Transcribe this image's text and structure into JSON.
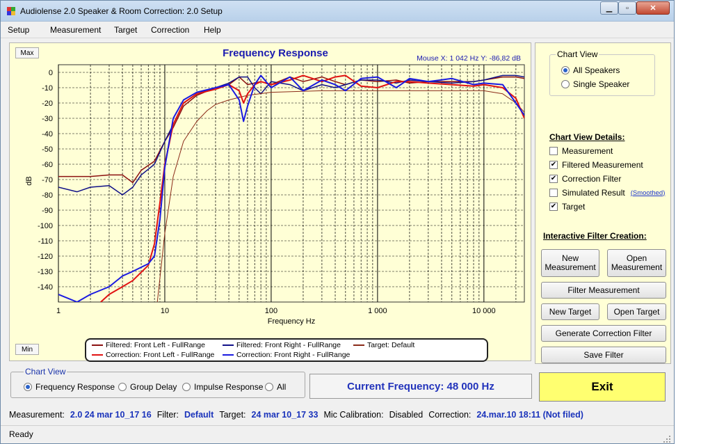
{
  "window": {
    "title": "Audiolense 2.0 Speaker & Room Correction: 2.0 Setup"
  },
  "menu": [
    "Setup",
    "Measurement",
    "Target",
    "Correction",
    "Help"
  ],
  "chart_panel": {
    "max_label": "Max",
    "min_label": "Min",
    "mouse_readout": "Mouse X: 1 042 Hz   Y:  -86,82 dB"
  },
  "chart_data": {
    "type": "line",
    "title": "Frequency Response",
    "xlabel": "Frequency Hz",
    "ylabel": "dB",
    "x_scale": "log",
    "xlim": [
      1,
      24000
    ],
    "ylim": [
      -150,
      5
    ],
    "x_ticks": [
      {
        "v": 1,
        "label": "1"
      },
      {
        "v": 10,
        "label": "10"
      },
      {
        "v": 100,
        "label": "100"
      },
      {
        "v": 1000,
        "label": "1 000"
      },
      {
        "v": 10000,
        "label": "10 000"
      }
    ],
    "y_ticks": [
      0,
      -10,
      -20,
      -30,
      -40,
      -50,
      -60,
      -70,
      -80,
      -90,
      -100,
      -110,
      -120,
      -130,
      -140
    ],
    "grid": true,
    "legend_position": "bottom",
    "series": [
      {
        "name": "Filtered: Front Left - FullRange",
        "color": "#8b1010",
        "width": 1.5,
        "points": [
          [
            1,
            -68
          ],
          [
            2,
            -68
          ],
          [
            3,
            -67
          ],
          [
            4,
            -67
          ],
          [
            5,
            -72
          ],
          [
            6,
            -64
          ],
          [
            8,
            -58
          ],
          [
            10,
            -45
          ],
          [
            12,
            -36
          ],
          [
            15,
            -22
          ],
          [
            20,
            -15
          ],
          [
            30,
            -10
          ],
          [
            40,
            -8
          ],
          [
            50,
            -3
          ],
          [
            60,
            -8
          ],
          [
            80,
            -6
          ],
          [
            100,
            -8
          ],
          [
            150,
            -3
          ],
          [
            200,
            -6
          ],
          [
            300,
            -3
          ],
          [
            400,
            -6
          ],
          [
            500,
            -8
          ],
          [
            700,
            -5
          ],
          [
            1000,
            -6
          ],
          [
            1500,
            -5
          ],
          [
            2000,
            -7
          ],
          [
            3000,
            -6
          ],
          [
            5000,
            -6
          ],
          [
            8000,
            -6
          ],
          [
            10000,
            -5
          ],
          [
            15000,
            -3
          ],
          [
            20000,
            -3
          ],
          [
            24000,
            -4
          ]
        ]
      },
      {
        "name": "Filtered: Front Right - FullRange",
        "color": "#101088",
        "width": 1.5,
        "points": [
          [
            1,
            -75
          ],
          [
            1.5,
            -78
          ],
          [
            2,
            -75
          ],
          [
            3,
            -74
          ],
          [
            4,
            -80
          ],
          [
            5,
            -75
          ],
          [
            6,
            -67
          ],
          [
            8,
            -60
          ],
          [
            10,
            -45
          ],
          [
            12,
            -34
          ],
          [
            15,
            -20
          ],
          [
            20,
            -14
          ],
          [
            30,
            -10
          ],
          [
            40,
            -7
          ],
          [
            50,
            -3
          ],
          [
            60,
            -3
          ],
          [
            70,
            -10
          ],
          [
            80,
            -14
          ],
          [
            100,
            -6
          ],
          [
            150,
            -8
          ],
          [
            200,
            -12
          ],
          [
            300,
            -8
          ],
          [
            400,
            -10
          ],
          [
            500,
            -8
          ],
          [
            700,
            -5
          ],
          [
            1000,
            -5
          ],
          [
            1500,
            -7
          ],
          [
            2000,
            -5
          ],
          [
            3000,
            -6
          ],
          [
            5000,
            -7
          ],
          [
            8000,
            -6
          ],
          [
            10000,
            -5
          ],
          [
            15000,
            -2
          ],
          [
            20000,
            -2
          ],
          [
            24000,
            -3
          ]
        ]
      },
      {
        "name": "Target: Default",
        "color": "#8a2a18",
        "width": 1,
        "points": [
          [
            8.5,
            -150
          ],
          [
            10,
            -105
          ],
          [
            12,
            -68
          ],
          [
            15,
            -45
          ],
          [
            20,
            -32
          ],
          [
            25,
            -25
          ],
          [
            30,
            -21
          ],
          [
            40,
            -18
          ],
          [
            60,
            -15
          ],
          [
            100,
            -13
          ],
          [
            300,
            -12
          ],
          [
            1000,
            -12
          ],
          [
            5000,
            -12
          ],
          [
            10000,
            -12
          ],
          [
            15000,
            -14
          ],
          [
            20000,
            -20
          ],
          [
            24000,
            -26
          ]
        ]
      },
      {
        "name": "Correction: Front Left - FullRange",
        "color": "#e11212",
        "width": 2,
        "points": [
          [
            2.5,
            -150
          ],
          [
            3,
            -145
          ],
          [
            4,
            -140
          ],
          [
            5,
            -136
          ],
          [
            7,
            -126
          ],
          [
            8,
            -112
          ],
          [
            9,
            -85
          ],
          [
            10,
            -60
          ],
          [
            12,
            -34
          ],
          [
            15,
            -20
          ],
          [
            20,
            -14
          ],
          [
            30,
            -11
          ],
          [
            40,
            -8
          ],
          [
            50,
            -12
          ],
          [
            55,
            -20
          ],
          [
            60,
            -14
          ],
          [
            70,
            -8
          ],
          [
            80,
            -6
          ],
          [
            100,
            -8
          ],
          [
            150,
            -5
          ],
          [
            200,
            -2
          ],
          [
            300,
            -6
          ],
          [
            400,
            -3
          ],
          [
            500,
            -2
          ],
          [
            700,
            -9
          ],
          [
            1000,
            -10
          ],
          [
            1500,
            -6
          ],
          [
            2000,
            -6
          ],
          [
            3000,
            -7
          ],
          [
            5000,
            -8
          ],
          [
            8000,
            -9
          ],
          [
            10000,
            -8
          ],
          [
            15000,
            -10
          ],
          [
            20000,
            -17
          ],
          [
            24000,
            -30
          ]
        ]
      },
      {
        "name": "Correction: Front Right - FullRange",
        "color": "#1a1ae0",
        "width": 2,
        "points": [
          [
            1,
            -145
          ],
          [
            1.5,
            -150
          ],
          [
            2,
            -145
          ],
          [
            3,
            -140
          ],
          [
            4,
            -133
          ],
          [
            5,
            -130
          ],
          [
            7,
            -125
          ],
          [
            8,
            -120
          ],
          [
            9,
            -96
          ],
          [
            10,
            -62
          ],
          [
            12,
            -30
          ],
          [
            15,
            -18
          ],
          [
            20,
            -13
          ],
          [
            30,
            -10
          ],
          [
            40,
            -8
          ],
          [
            50,
            -18
          ],
          [
            55,
            -32
          ],
          [
            60,
            -22
          ],
          [
            70,
            -8
          ],
          [
            80,
            -2
          ],
          [
            100,
            -10
          ],
          [
            150,
            -3
          ],
          [
            200,
            -12
          ],
          [
            300,
            -5
          ],
          [
            400,
            -8
          ],
          [
            500,
            -12
          ],
          [
            700,
            -4
          ],
          [
            1000,
            -3
          ],
          [
            1500,
            -10
          ],
          [
            2000,
            -4
          ],
          [
            3000,
            -6
          ],
          [
            5000,
            -4
          ],
          [
            8000,
            -8
          ],
          [
            10000,
            -7
          ],
          [
            15000,
            -8
          ],
          [
            20000,
            -20
          ],
          [
            24000,
            -28
          ]
        ]
      }
    ]
  },
  "right_panel": {
    "chart_view_title": "Chart View",
    "chart_view_options": [
      {
        "label": "All Speakers",
        "selected": true
      },
      {
        "label": "Single Speaker",
        "selected": false
      }
    ],
    "details_title": "Chart View Details:",
    "details": [
      {
        "label": "Measurement",
        "checked": false
      },
      {
        "label": "Filtered Measurement",
        "checked": true
      },
      {
        "label": "Correction Filter",
        "checked": true
      },
      {
        "label": "Simulated Result",
        "checked": false
      },
      {
        "label": "Target",
        "checked": true
      }
    ],
    "smoothed_link": "(Smoothed)",
    "ifc_title": "Interactive Filter Creation:",
    "buttons": {
      "new_measurement": "New Measurement",
      "open_measurement": "Open Measurement",
      "filter_measurement": "Filter Measurement",
      "new_target": "New Target",
      "open_target": "Open Target",
      "generate_filter": "Generate Correction Filter",
      "save_filter": "Save Filter"
    }
  },
  "bottom": {
    "chart_view_title": "Chart View",
    "view_options": [
      {
        "label": "Frequency Response",
        "selected": true
      },
      {
        "label": "Group Delay",
        "selected": false
      },
      {
        "label": "Impulse Response",
        "selected": false
      },
      {
        "label": "All",
        "selected": false
      }
    ],
    "current_frequency": "Current Frequency: 48 000 Hz",
    "exit_label": "Exit"
  },
  "info": {
    "measurement_label": "Measurement:",
    "measurement_value": "2.0 24 mar 10_17 16",
    "filter_label": "Filter:",
    "filter_value": "Default",
    "target_label": "Target:",
    "target_value": "24 mar 10_17 33",
    "mic_label": "Mic Calibration:",
    "mic_value": "Disabled",
    "correction_label": "Correction:",
    "correction_value": "24.mar.10 18:11 (Not filed)"
  },
  "status": {
    "text": "Ready"
  }
}
